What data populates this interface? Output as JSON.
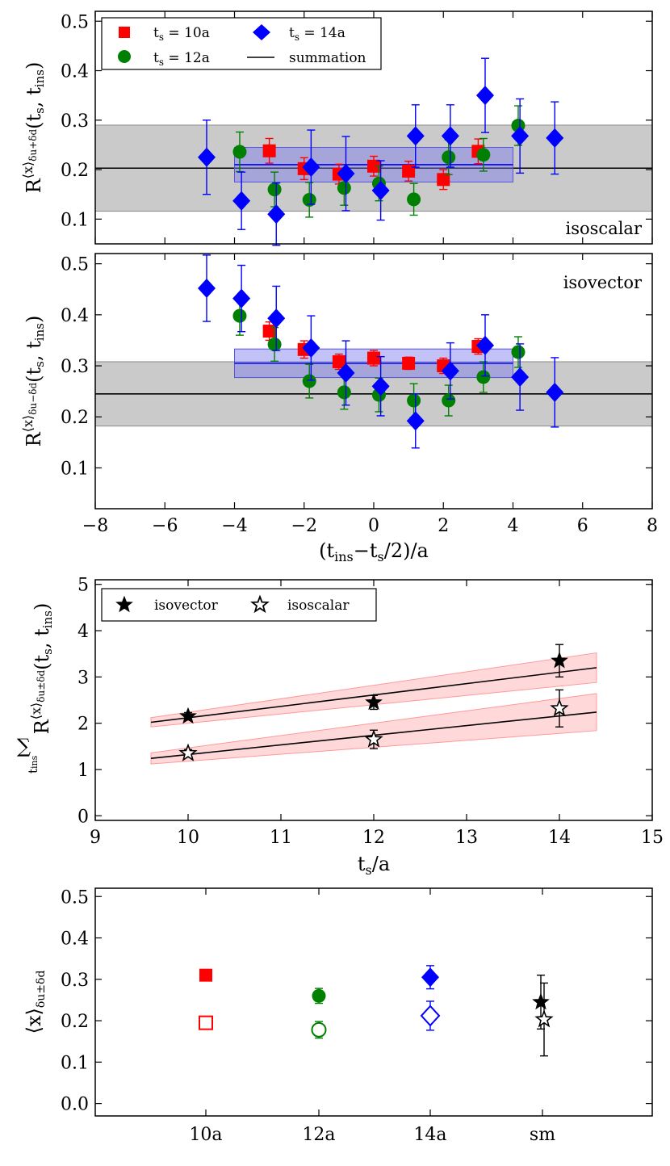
{
  "chart_data": [
    {
      "id": "p1",
      "type": "scatter",
      "annotation": "isoscalar",
      "ylabel_main": "R",
      "ylabel_sup": "⟨x⟩",
      "ylabel_sub": "δu+δd",
      "ylabel_args": "(t",
      "ylabel_args_sub1": "s",
      "ylabel_args_mid": ", t",
      "ylabel_args_sub2": "ins",
      "ylabel_args_end": ")",
      "xlim": [
        -8,
        8
      ],
      "ylim": [
        0.05,
        0.52
      ],
      "yticks": [
        0.1,
        0.2,
        0.3,
        0.4,
        0.5
      ],
      "ytick_labels": [
        "0.1",
        "0.2",
        "0.3",
        "0.4",
        "0.5"
      ],
      "xticks": [
        -8,
        -6,
        -4,
        -2,
        0,
        2,
        4,
        6,
        8
      ],
      "legend": {
        "entries": [
          {
            "label": "t",
            "sub": "s",
            "rest": " = 10a",
            "series": "ts10"
          },
          {
            "label": "t",
            "sub": "s",
            "rest": " = 12a",
            "series": "ts12"
          },
          {
            "label": "t",
            "sub": "s",
            "rest": " = 14a",
            "series": "ts14"
          },
          {
            "label": "summation",
            "series": "summation"
          }
        ]
      },
      "summation": {
        "value": 0.203,
        "lower": 0.116,
        "upper": 0.29
      },
      "plateau": {
        "value": 0.21,
        "lower": 0.175,
        "upper": 0.245,
        "x_range": [
          -4,
          4
        ]
      },
      "series": [
        {
          "name": "ts10",
          "marker": "square",
          "color": "#ff0000",
          "x": [
            -3,
            -2,
            -1,
            0,
            1,
            2,
            3
          ],
          "y": [
            0.238,
            0.202,
            0.191,
            0.207,
            0.197,
            0.18,
            0.237
          ],
          "err": [
            0.025,
            0.022,
            0.02,
            0.02,
            0.02,
            0.02,
            0.025
          ]
        },
        {
          "name": "ts12",
          "marker": "circle",
          "color": "#008000",
          "x": [
            -3.85,
            -2.85,
            -1.85,
            -0.85,
            0.15,
            1.15,
            2.15,
            3.15,
            4.15
          ],
          "y": [
            0.236,
            0.16,
            0.139,
            0.163,
            0.172,
            0.14,
            0.225,
            0.23,
            0.289
          ],
          "err": [
            0.04,
            0.035,
            0.035,
            0.035,
            0.035,
            0.032,
            0.035,
            0.033,
            0.04
          ]
        },
        {
          "name": "ts14",
          "marker": "diamond",
          "color": "#0000ff",
          "x": [
            -4.8,
            -3.8,
            -2.8,
            -1.8,
            -0.8,
            0.2,
            1.2,
            2.2,
            3.2,
            4.2,
            5.2
          ],
          "y": [
            0.225,
            0.137,
            0.11,
            0.205,
            0.192,
            0.158,
            0.268,
            0.268,
            0.35,
            0.268,
            0.264
          ],
          "err": [
            0.075,
            0.058,
            0.063,
            0.075,
            0.075,
            0.06,
            0.063,
            0.063,
            0.075,
            0.075,
            0.073
          ]
        }
      ]
    },
    {
      "id": "p2",
      "type": "scatter",
      "annotation": "isovector",
      "ylabel_main": "R",
      "ylabel_sup": "⟨x⟩",
      "ylabel_sub": "δu−δd",
      "ylabel_args": "(t",
      "ylabel_args_sub1": "s",
      "ylabel_args_mid": ", t",
      "ylabel_args_sub2": "ins",
      "ylabel_args_end": ")",
      "xlabel_a": "(t",
      "xlabel_sub1": "ins",
      "xlabel_b": "−t",
      "xlabel_sub2": "s",
      "xlabel_c": "/2)/a",
      "xlim": [
        -8,
        8
      ],
      "ylim": [
        0.02,
        0.52
      ],
      "yticks": [
        0.1,
        0.2,
        0.3,
        0.4,
        0.5
      ],
      "ytick_labels": [
        "0.1",
        "0.2",
        "0.3",
        "0.4",
        "0.5"
      ],
      "xticks": [
        -8,
        -6,
        -4,
        -2,
        0,
        2,
        4,
        6,
        8
      ],
      "xtick_labels": [
        "−8",
        "−6",
        "−4",
        "−2",
        "0",
        "2",
        "4",
        "6",
        "8"
      ],
      "summation": {
        "value": 0.245,
        "lower": 0.182,
        "upper": 0.308
      },
      "plateau": {
        "value": 0.305,
        "lower": 0.277,
        "upper": 0.333,
        "x_range": [
          -4,
          4
        ]
      },
      "series": [
        {
          "name": "ts10",
          "marker": "square",
          "color": "#ff0000",
          "x": [
            -3,
            -2,
            -1,
            0,
            1,
            2,
            3
          ],
          "y": [
            0.368,
            0.332,
            0.308,
            0.315,
            0.305,
            0.3,
            0.338
          ],
          "err": [
            0.018,
            0.017,
            0.015,
            0.015,
            0.012,
            0.015,
            0.015
          ]
        },
        {
          "name": "ts12",
          "marker": "circle",
          "color": "#008000",
          "x": [
            -3.85,
            -2.85,
            -1.85,
            -0.85,
            0.15,
            1.15,
            2.15,
            3.15,
            4.15
          ],
          "y": [
            0.398,
            0.342,
            0.27,
            0.248,
            0.243,
            0.232,
            0.232,
            0.278,
            0.327
          ],
          "err": [
            0.038,
            0.033,
            0.033,
            0.033,
            0.033,
            0.033,
            0.03,
            0.03,
            0.03
          ]
        },
        {
          "name": "ts14",
          "marker": "diamond",
          "color": "#0000ff",
          "x": [
            -4.8,
            -3.8,
            -2.8,
            -1.8,
            -0.8,
            0.2,
            1.2,
            2.2,
            3.2,
            4.2,
            5.2
          ],
          "y": [
            0.452,
            0.432,
            0.393,
            0.335,
            0.286,
            0.26,
            0.192,
            0.29,
            0.34,
            0.278,
            0.248
          ],
          "err": [
            0.065,
            0.065,
            0.063,
            0.063,
            0.063,
            0.058,
            0.053,
            0.055,
            0.06,
            0.065,
            0.068
          ]
        }
      ]
    },
    {
      "id": "p3",
      "type": "scatter",
      "xlabel_a": "t",
      "xlabel_sub": "s",
      "xlabel_c": "/a",
      "ylabel_sum": "∑",
      "ylabel_sum_sub": "t",
      "ylabel_sum_subsub": "ins",
      "ylabel_main": "R",
      "ylabel_sup": "⟨x⟩",
      "ylabel_sub": "δu±δd",
      "ylabel_args": "(t",
      "ylabel_args_sub1": "s",
      "ylabel_args_mid": ", t",
      "ylabel_args_sub2": "ins",
      "ylabel_args_end": ")",
      "xlim": [
        9,
        15
      ],
      "ylim": [
        -0.1,
        5.1
      ],
      "xticks": [
        9,
        10,
        11,
        12,
        13,
        14,
        15
      ],
      "yticks": [
        0,
        1,
        2,
        3,
        4,
        5
      ],
      "legend": {
        "entries": [
          {
            "label": "isovector",
            "series": "isovector"
          },
          {
            "label": "isoscalar",
            "series": "isoscalar"
          }
        ]
      },
      "series": [
        {
          "name": "isovector",
          "marker": "star-filled",
          "color": "#000000",
          "x": [
            10,
            12,
            14
          ],
          "y": [
            2.15,
            2.45,
            3.35
          ],
          "err": [
            0.08,
            0.15,
            0.35
          ],
          "fit": {
            "x": [
              9.6,
              14.4
            ],
            "y": [
              2.02,
              3.2
            ],
            "band_lower": [
              1.92,
              2.88
            ],
            "band_upper": [
              2.12,
              3.52
            ]
          }
        },
        {
          "name": "isoscalar",
          "marker": "star-open",
          "color": "#000000",
          "x": [
            10,
            12,
            14
          ],
          "y": [
            1.35,
            1.65,
            2.32
          ],
          "err": [
            0.08,
            0.2,
            0.4
          ],
          "fit": {
            "x": [
              9.6,
              14.4
            ],
            "y": [
              1.24,
              2.24
            ],
            "band_lower": [
              1.12,
              1.84
            ],
            "band_upper": [
              1.36,
              2.64
            ]
          }
        }
      ]
    },
    {
      "id": "p4",
      "type": "scatter",
      "ylabel_main": "⟨x⟩",
      "ylabel_sub": "δu±δd",
      "ylim": [
        -0.03,
        0.52
      ],
      "yticks": [
        0.0,
        0.1,
        0.2,
        0.3,
        0.4,
        0.5
      ],
      "ytick_labels": [
        "0.0",
        "0.1",
        "0.2",
        "0.3",
        "0.4",
        "0.5"
      ],
      "categories": [
        "10a",
        "12a",
        "14a",
        "sm"
      ],
      "series": [
        {
          "name": "isovector",
          "values": [
            0.31,
            0.26,
            0.305,
            0.245
          ],
          "err": [
            0.0,
            0.018,
            0.028,
            0.065
          ],
          "markers": [
            "square",
            "circle",
            "diamond",
            "star"
          ],
          "colors": [
            "#ff0000",
            "#008000",
            "#0000ff",
            "#000000"
          ],
          "filled": true
        },
        {
          "name": "isoscalar",
          "values": [
            0.195,
            0.178,
            0.212,
            0.203
          ],
          "err": [
            0.0,
            0.02,
            0.035,
            0.088
          ],
          "markers": [
            "square",
            "circle",
            "diamond",
            "star"
          ],
          "colors": [
            "#ff0000",
            "#008000",
            "#0000ff",
            "#000000"
          ],
          "filled": false
        }
      ]
    }
  ]
}
